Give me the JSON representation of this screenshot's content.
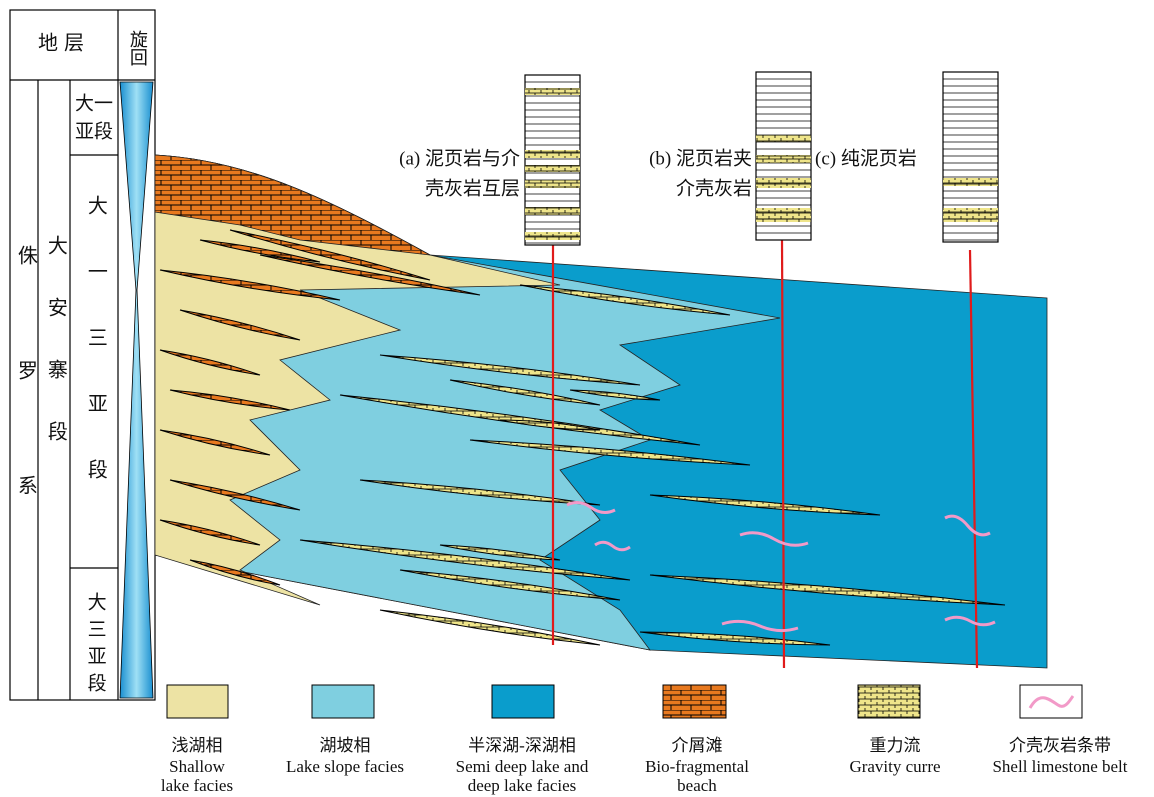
{
  "strat_column": {
    "headers": [
      "地层",
      "旋回"
    ],
    "system": "侏罗系",
    "formation": "大安寨段",
    "members": [
      {
        "lines": [
          "大一",
          "亚段"
        ]
      },
      {
        "text": "大一三亚段"
      },
      {
        "text": "大三亚段"
      }
    ]
  },
  "columns": [
    {
      "lines": [
        "(a) 泥页岩与介",
        "壳灰岩互层"
      ]
    },
    {
      "lines": [
        "(b) 泥页岩夹",
        "介壳灰岩"
      ]
    },
    {
      "lines": [
        "(c) 纯泥页岩"
      ]
    }
  ],
  "legend": [
    {
      "zh": "浅湖相",
      "en": [
        "Shallow",
        "lake facies"
      ]
    },
    {
      "zh": "湖坡相",
      "en": [
        "Lake slope facies"
      ]
    },
    {
      "zh": "半深湖-深湖相",
      "en": [
        "Semi deep lake and",
        "deep lake facies"
      ]
    },
    {
      "zh": "介屑滩",
      "en": [
        "Bio-fragmental",
        "beach"
      ]
    },
    {
      "zh": "重力流",
      "en": [
        "Gravity curre"
      ]
    },
    {
      "zh": "介壳灰岩条带",
      "en": [
        "Shell limestone belt"
      ]
    }
  ]
}
